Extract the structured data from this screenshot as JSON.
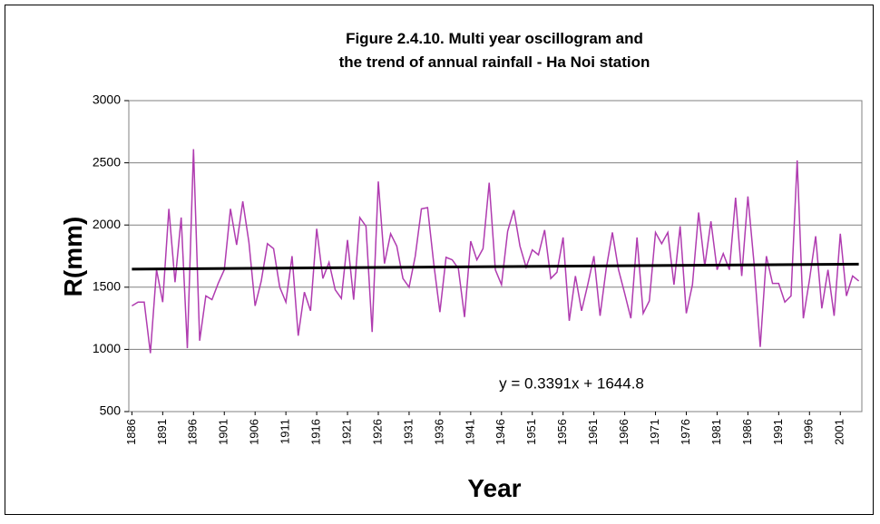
{
  "chart_data": {
    "type": "line",
    "title": [
      "Figure 2.4.10. Multi year oscillogram and",
      "the trend of annual rainfall - Ha Noi station"
    ],
    "y_label": "R(mm)",
    "x_label": "Year",
    "categories": [
      "1886",
      null,
      null,
      null,
      null,
      "1891",
      null,
      null,
      null,
      null,
      "1896",
      null,
      null,
      null,
      null,
      "1901",
      null,
      null,
      null,
      null,
      "1906",
      null,
      null,
      null,
      null,
      "1911",
      null,
      null,
      null,
      null,
      "1916",
      null,
      null,
      null,
      null,
      "1921",
      null,
      null,
      null,
      null,
      "1926",
      null,
      null,
      null,
      null,
      "1931",
      null,
      null,
      null,
      null,
      "1936",
      null,
      null,
      null,
      null,
      "1941",
      null,
      null,
      null,
      null,
      "1946",
      null,
      null,
      null,
      null,
      "1951",
      null,
      null,
      null,
      null,
      "1956",
      null,
      null,
      null,
      null,
      "1961",
      null,
      null,
      null,
      null,
      "1966",
      null,
      null,
      null,
      null,
      "1971",
      null,
      null,
      null,
      null,
      "1976",
      null,
      null,
      null,
      null,
      "1981",
      null,
      null,
      null,
      null,
      "1986",
      null,
      null,
      null,
      null,
      "1991",
      null,
      null,
      null,
      null,
      "1996",
      null,
      null,
      null,
      null,
      "2001",
      null,
      null,
      null
    ],
    "series": [
      {
        "color": "#b03cb0",
        "values": [
          1350,
          1380,
          1380,
          970,
          1640,
          1380,
          2130,
          1540,
          2060,
          1010,
          2610,
          1070,
          1430,
          1400,
          1530,
          1640,
          2130,
          1840,
          2190,
          1860,
          1350,
          1550,
          1850,
          1810,
          1500,
          1380,
          1750,
          1110,
          1460,
          1310,
          1970,
          1570,
          1700,
          1480,
          1410,
          1880,
          1400,
          2060,
          1990,
          1140,
          2350,
          1690,
          1930,
          1830,
          1570,
          1500,
          1750,
          2130,
          2140,
          1690,
          1300,
          1740,
          1720,
          1650,
          1260,
          1870,
          1720,
          1810,
          2340,
          1640,
          1520,
          1950,
          2120,
          1830,
          1660,
          1800,
          1760,
          1960,
          1570,
          1620,
          1900,
          1230,
          1590,
          1310,
          1520,
          1750,
          1270,
          1650,
          1940,
          1640,
          1450,
          1250,
          1900,
          1290,
          1390,
          1940,
          1850,
          1940,
          1520,
          1990,
          1290,
          1520,
          2100,
          1670,
          2030,
          1640,
          1770,
          1640,
          2220,
          1590,
          2230,
          1690,
          1020,
          1750,
          1530,
          1530,
          1380,
          1430,
          2520,
          1250,
          1560,
          1910,
          1330,
          1640,
          1270,
          1930,
          1430,
          1590,
          1550
        ]
      }
    ],
    "trend": {
      "slope": 0.3391,
      "intercept": 1644.8,
      "color": "#000000",
      "label": "y = 0.3391x + 1644.8"
    },
    "ylim": [
      500,
      3000
    ],
    "yticks": [
      500,
      1000,
      1500,
      2000,
      2500,
      3000
    ],
    "grid": true
  }
}
